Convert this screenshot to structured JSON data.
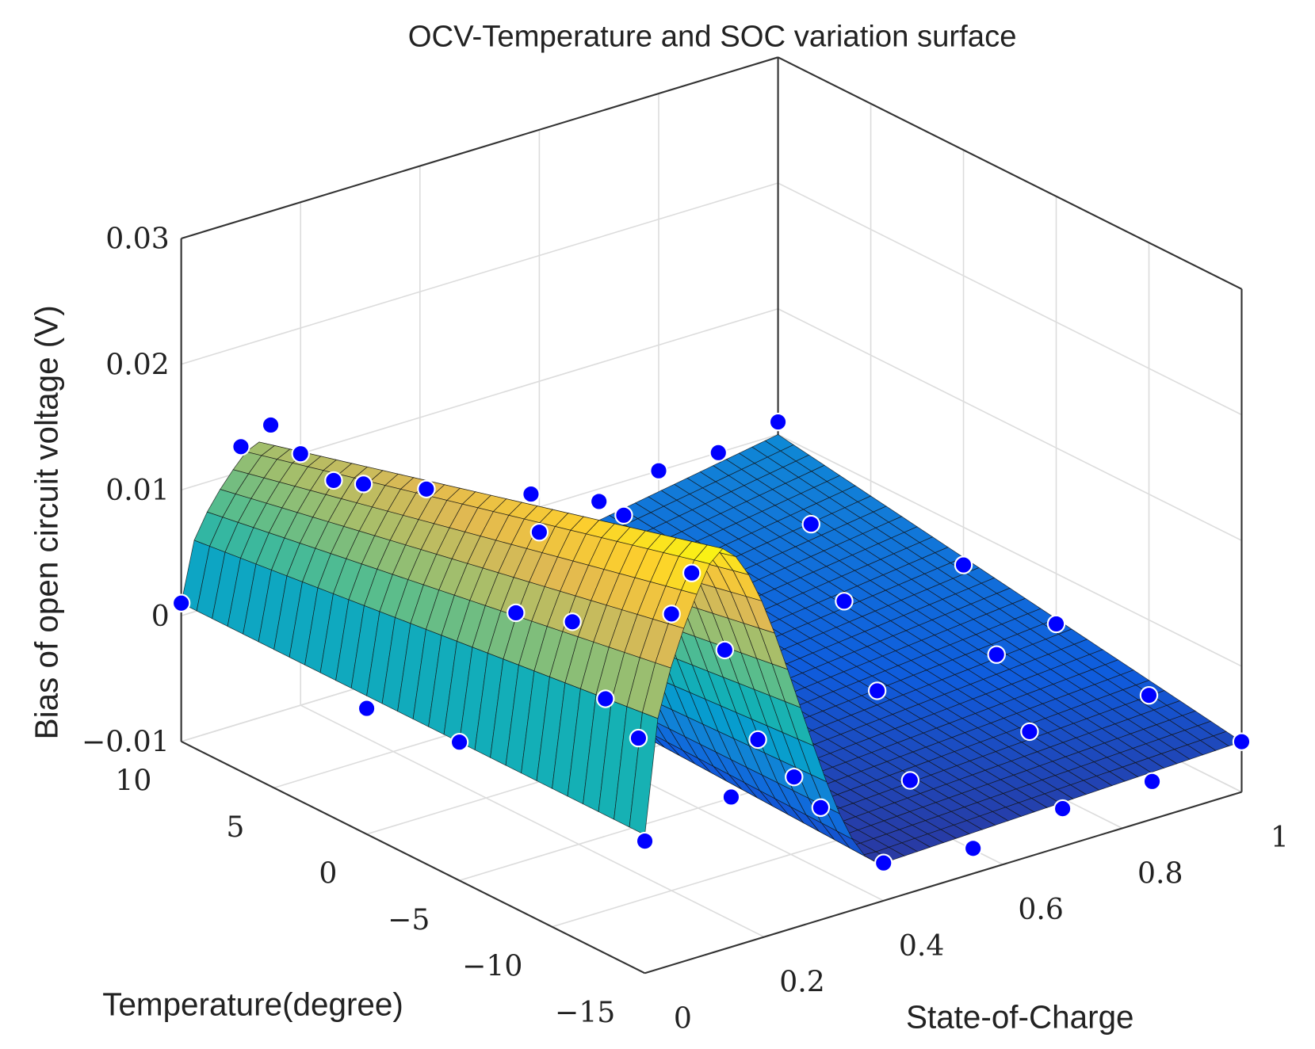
{
  "chart_data": {
    "type": "surface3d",
    "title": "OCV-Temperature and SOC variation surface",
    "xlabel": "Temperature(degree)",
    "ylabel": "State-of-Charge",
    "zlabel": "Bias of open circuit voltage (V)",
    "x_range": [
      -15,
      10
    ],
    "y_range": [
      0,
      1
    ],
    "z_range": [
      -0.01,
      0.03
    ],
    "x_ticks": [
      "10",
      "5",
      "0",
      "−5",
      "−10",
      "−15"
    ],
    "x_tick_values": [
      10,
      5,
      0,
      -5,
      -10,
      -15
    ],
    "y_ticks": [
      "0",
      "0.2",
      "0.4",
      "0.6",
      "0.8",
      "1"
    ],
    "y_tick_values": [
      0,
      0.2,
      0.4,
      0.6,
      0.8,
      1
    ],
    "z_ticks": [
      "0.03",
      "0.02",
      "0.01",
      "0",
      "−0.01"
    ],
    "z_tick_values": [
      0.03,
      0.02,
      0.01,
      0,
      -0.01
    ],
    "grid": true,
    "colormap": "parula",
    "point_color": "#0000ff",
    "surface_model": {
      "edge_bias": 0.001,
      "peak_soc": 0.12,
      "peak_bias_at_10C": 0.012,
      "peak_bias_at_minus15C": 0.022,
      "valley_soc": 0.4,
      "valley_bias_at_10C": -0.005,
      "valley_bias_at_minus15C": -0.007,
      "high_soc_bias_at_10C": 0.0,
      "high_soc_bias_at_minus15C": -0.006
    },
    "points": [
      [
        10,
        0,
        0.001
      ],
      [
        10,
        0.1,
        0.012
      ],
      [
        10,
        0.15,
        0.013
      ],
      [
        10,
        0.2,
        0.01
      ],
      [
        5,
        0.1,
        0.013
      ],
      [
        5,
        0.15,
        0.012
      ],
      [
        0,
        0.1,
        0.016
      ],
      [
        -5,
        0.12,
        0.019
      ],
      [
        -10,
        0.12,
        0.021
      ],
      [
        -15,
        0,
        0.0005
      ],
      [
        -5,
        0,
        0.001
      ],
      [
        0,
        0,
        0.0
      ],
      [
        10,
        0.6,
        -0.002
      ],
      [
        10,
        0.7,
        -0.001
      ],
      [
        10,
        0.8,
        0.0
      ],
      [
        10,
        0.9,
        0.0
      ],
      [
        10,
        1,
        0.001
      ],
      [
        5,
        0.5,
        -0.004
      ],
      [
        5,
        0.7,
        -0.003
      ],
      [
        5,
        0.9,
        -0.002
      ],
      [
        0,
        0.4,
        -0.005
      ],
      [
        0,
        0.6,
        -0.004
      ],
      [
        0,
        0.8,
        -0.003
      ],
      [
        0,
        1,
        -0.003
      ],
      [
        -5,
        0.3,
        -0.003
      ],
      [
        -5,
        0.5,
        -0.006
      ],
      [
        -5,
        0.7,
        -0.005
      ],
      [
        -5,
        0.9,
        -0.005
      ],
      [
        -5,
        1,
        -0.004
      ],
      [
        -10,
        0.3,
        -0.004
      ],
      [
        -10,
        0.45,
        -0.007
      ],
      [
        -10,
        0.6,
        -0.007
      ],
      [
        -10,
        0.8,
        -0.006
      ],
      [
        -10,
        1,
        -0.006
      ],
      [
        -15,
        0.4,
        -0.007
      ],
      [
        -15,
        0.55,
        -0.008
      ],
      [
        -15,
        0.7,
        -0.007
      ],
      [
        -15,
        0.85,
        -0.007
      ],
      [
        -15,
        1,
        -0.006
      ],
      [
        -15,
        0.25,
        0.002
      ],
      [
        -10,
        0.2,
        0.012
      ],
      [
        0,
        0.25,
        0.004
      ]
    ]
  }
}
